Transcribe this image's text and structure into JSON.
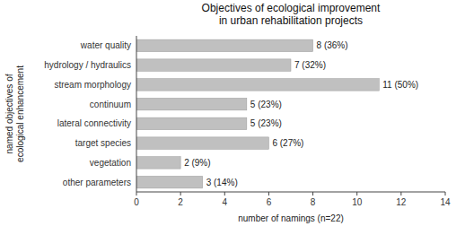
{
  "chart_data": {
    "type": "bar",
    "orientation": "horizontal",
    "title": "Objectives of ecological improvement\nin urban rehabilitation projects",
    "categories": [
      "water quality",
      "hydrology / hydraulics",
      "stream morphology",
      "continuum",
      "lateral connectivity",
      "target species",
      "vegetation",
      "other parameters"
    ],
    "values": [
      8,
      7,
      11,
      5,
      5,
      6,
      2,
      3
    ],
    "value_labels": [
      "8 (36%)",
      "7 (32%)",
      "11 (50%)",
      "5 (23%)",
      "5 (23%)",
      "6 (27%)",
      "2 (9%)",
      "3 (14%)"
    ],
    "data_labels": true,
    "color": "#c0c0c0",
    "xlabel": "number of namings (n=22)",
    "ylabel": "named objectives of\necological enhancement",
    "xlim": [
      0,
      14
    ],
    "xticks": [
      0,
      2,
      4,
      6,
      8,
      10,
      12,
      14
    ],
    "grid": false
  }
}
